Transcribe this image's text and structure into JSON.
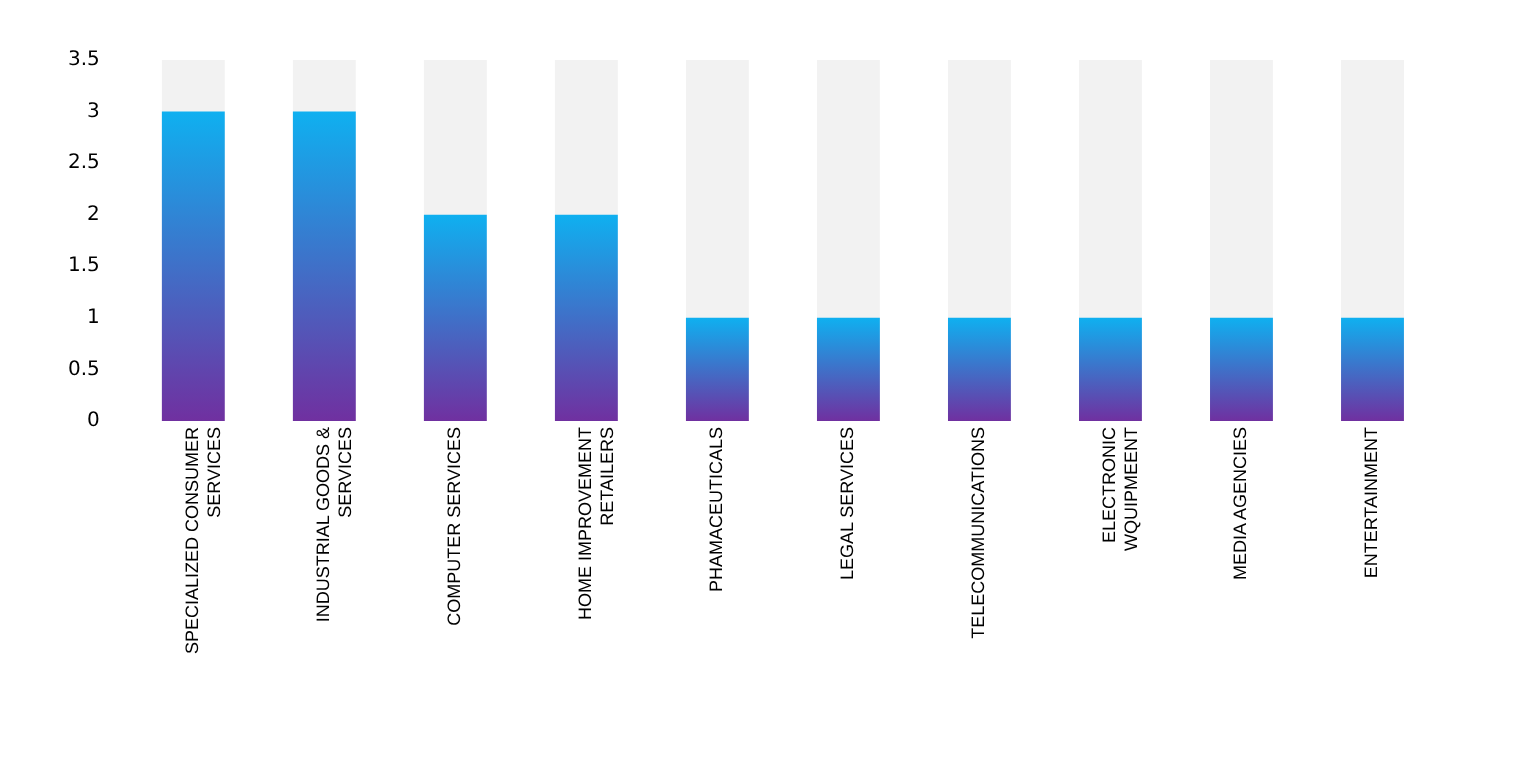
{
  "chart_data": {
    "type": "bar",
    "categories": [
      "SPECIALIZED CONSUMER SERVICES",
      "INDUSTRIAL GOODS & SERVICES",
      "COMPUTER SERVICES",
      "HOME IMPROVEMENT RETAILERS",
      "PHAMACEUTICALS",
      "LEGAL SERVICES",
      "TELECOMMUNICATIONS",
      "ELECTRONIC WQUIPMEENT",
      "MEDIA AGENCIES",
      "ENTERTAINMENT"
    ],
    "values": [
      3,
      3,
      2,
      2,
      1,
      1,
      1,
      1,
      1,
      1
    ],
    "color": "#0fb0f0",
    "ylim": [
      0,
      3.5
    ],
    "yticks": [
      0,
      0.5,
      1,
      1.5,
      2,
      2.5,
      3,
      3.5
    ],
    "grid": false,
    "legend": false
  }
}
